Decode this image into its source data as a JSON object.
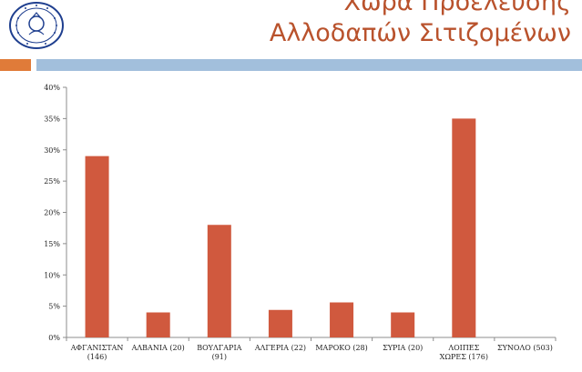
{
  "slide": {
    "title_line1": "Χώρα Προέλευσης",
    "title_line2": "Αλλοδαπών Σιτιζομένων",
    "colors": {
      "title": "#b9522c",
      "accent_left": "#e07b39",
      "accent_right": "#a2bfdc"
    },
    "logo_icon": "university-seal-icon"
  },
  "chart_data": {
    "type": "bar",
    "categories": [
      [
        "ΑΦΓΑΝΙΣΤΑΝ",
        "(146)"
      ],
      [
        "ΑΛΒΑΝΙΑ (20)"
      ],
      [
        "ΒΟΥΛΓΑΡΙΑ",
        "(91)"
      ],
      [
        "ΑΛΓΕΡΙΑ (22)"
      ],
      [
        "ΜΑΡΟΚΟ (28)"
      ],
      [
        "ΣΥΡΙΑ (20)"
      ],
      [
        "ΛΟΙΠΕΣ",
        "ΧΩΡΕΣ (176)"
      ],
      [
        "ΣΥΝΟΛΟ (503)"
      ]
    ],
    "values": [
      29,
      4,
      18,
      4.4,
      5.6,
      4,
      35,
      0
    ],
    "ylim": [
      0,
      40
    ],
    "yticks": [
      0,
      5,
      10,
      15,
      20,
      25,
      30,
      35,
      40
    ],
    "ytick_labels": [
      "0%",
      "5%",
      "10%",
      "15%",
      "20%",
      "25%",
      "30%",
      "35%",
      "40%"
    ],
    "bar_color": "#d0593e",
    "grid": false,
    "title": "",
    "xlabel": "",
    "ylabel": ""
  }
}
